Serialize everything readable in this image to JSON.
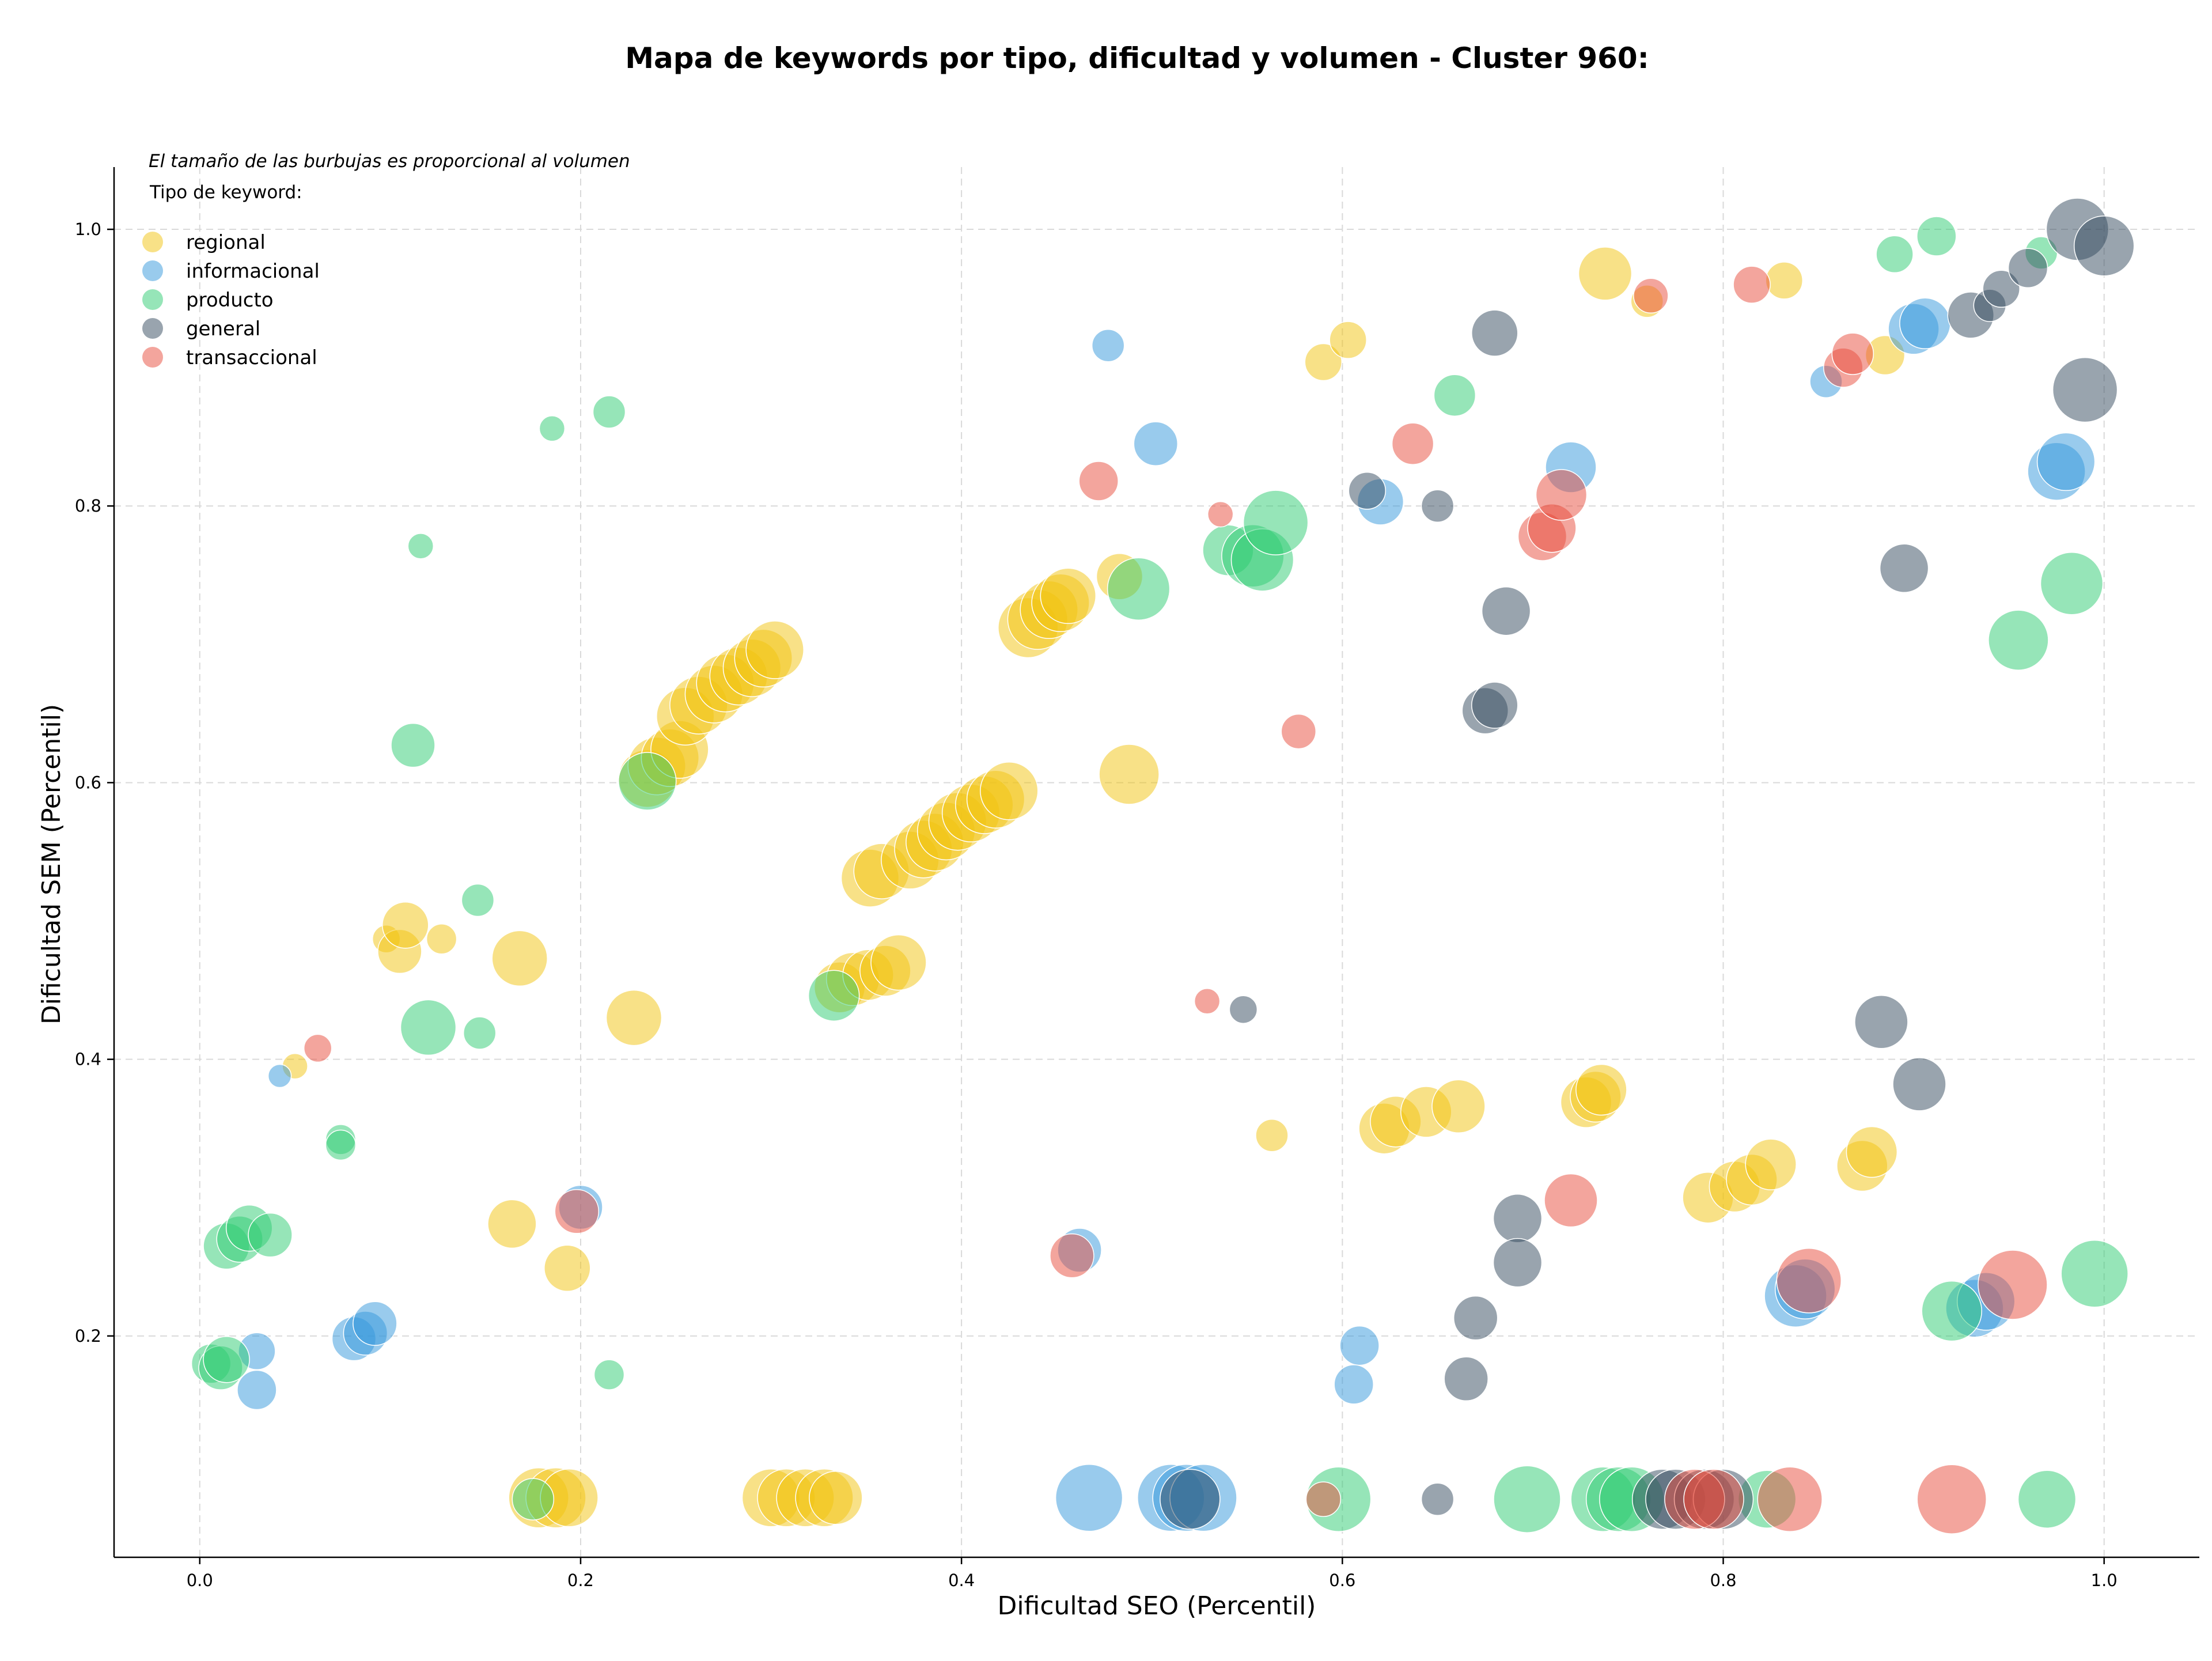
{
  "chart_data": {
    "type": "scatter",
    "title": "Mapa de keywords por tipo, dificultad y volumen - Cluster 960:",
    "xlabel": "Dificultad SEO (Percentil)",
    "ylabel": "Dificultad SEM (Percentil)",
    "xlim": [
      -0.045,
      1.05
    ],
    "ylim": [
      0.04,
      1.045
    ],
    "xticks": [
      0.0,
      0.2,
      0.4,
      0.6,
      0.8,
      1.0
    ],
    "xtick_labels": [
      "0.0",
      "0.2",
      "0.4",
      "0.6",
      "0.8",
      "1.0"
    ],
    "yticks": [
      0.2,
      0.4,
      0.6,
      0.8,
      1.0
    ],
    "ytick_labels": [
      "0.2",
      "0.4",
      "0.6",
      "0.8",
      "1.0"
    ],
    "grid": true,
    "size_note": "El tamaño de las burbujas es proporcional al volumen",
    "legend_title": "Tipo de keyword:",
    "legend_position": "top-left",
    "series": [
      {
        "name": "regional",
        "color": "#f1c40f",
        "points": [
          [
            0.05,
            0.395,
            22
          ],
          [
            0.098,
            0.487,
            24
          ],
          [
            0.105,
            0.478,
            38
          ],
          [
            0.108,
            0.497,
            40
          ],
          [
            0.127,
            0.487,
            26
          ],
          [
            0.168,
            0.473,
            48
          ],
          [
            0.164,
            0.281,
            42
          ],
          [
            0.193,
            0.249,
            40
          ],
          [
            0.228,
            0.43,
            48
          ],
          [
            0.235,
            0.603,
            50
          ],
          [
            0.24,
            0.612,
            50
          ],
          [
            0.247,
            0.618,
            50
          ],
          [
            0.252,
            0.624,
            50
          ],
          [
            0.255,
            0.648,
            50
          ],
          [
            0.262,
            0.656,
            50
          ],
          [
            0.27,
            0.664,
            50
          ],
          [
            0.276,
            0.672,
            50
          ],
          [
            0.283,
            0.677,
            50
          ],
          [
            0.29,
            0.683,
            50
          ],
          [
            0.296,
            0.69,
            50
          ],
          [
            0.302,
            0.696,
            50
          ],
          [
            0.352,
            0.531,
            50
          ],
          [
            0.358,
            0.536,
            48
          ],
          [
            0.373,
            0.544,
            50
          ],
          [
            0.38,
            0.552,
            50
          ],
          [
            0.386,
            0.557,
            50
          ],
          [
            0.392,
            0.565,
            50
          ],
          [
            0.398,
            0.572,
            50
          ],
          [
            0.405,
            0.578,
            50
          ],
          [
            0.412,
            0.584,
            50
          ],
          [
            0.418,
            0.588,
            50
          ],
          [
            0.425,
            0.594,
            50
          ],
          [
            0.336,
            0.452,
            44
          ],
          [
            0.343,
            0.458,
            46
          ],
          [
            0.351,
            0.461,
            44
          ],
          [
            0.36,
            0.464,
            44
          ],
          [
            0.367,
            0.47,
            48
          ],
          [
            0.435,
            0.712,
            52
          ],
          [
            0.44,
            0.718,
            52
          ],
          [
            0.446,
            0.725,
            50
          ],
          [
            0.452,
            0.73,
            50
          ],
          [
            0.456,
            0.735,
            48
          ],
          [
            0.483,
            0.749,
            40
          ],
          [
            0.488,
            0.606,
            52
          ],
          [
            0.59,
            0.904,
            32
          ],
          [
            0.603,
            0.92,
            32
          ],
          [
            0.563,
            0.345,
            28
          ],
          [
            0.622,
            0.35,
            44
          ],
          [
            0.628,
            0.355,
            44
          ],
          [
            0.644,
            0.362,
            44
          ],
          [
            0.661,
            0.366,
            46
          ],
          [
            0.728,
            0.369,
            44
          ],
          [
            0.733,
            0.373,
            44
          ],
          [
            0.736,
            0.378,
            44
          ],
          [
            0.792,
            0.3,
            44
          ],
          [
            0.806,
            0.308,
            44
          ],
          [
            0.815,
            0.313,
            44
          ],
          [
            0.825,
            0.324,
            44
          ],
          [
            0.873,
            0.323,
            44
          ],
          [
            0.878,
            0.333,
            44
          ],
          [
            0.738,
            0.968,
            46
          ],
          [
            0.76,
            0.948,
            28
          ],
          [
            0.832,
            0.963,
            32
          ],
          [
            0.885,
            0.909,
            34
          ],
          [
            0.178,
            0.083,
            52
          ],
          [
            0.187,
            0.083,
            52
          ],
          [
            0.194,
            0.083,
            50
          ],
          [
            0.3,
            0.083,
            50
          ],
          [
            0.308,
            0.083,
            50
          ],
          [
            0.318,
            0.083,
            50
          ],
          [
            0.328,
            0.083,
            50
          ],
          [
            0.334,
            0.083,
            46
          ]
        ]
      },
      {
        "name": "informacional",
        "color": "#3498db",
        "points": [
          [
            0.042,
            0.388,
            20
          ],
          [
            0.03,
            0.189,
            32
          ],
          [
            0.03,
            0.161,
            34
          ],
          [
            0.081,
            0.198,
            38
          ],
          [
            0.087,
            0.202,
            38
          ],
          [
            0.092,
            0.209,
            38
          ],
          [
            0.2,
            0.293,
            38
          ],
          [
            0.477,
            0.916,
            28
          ],
          [
            0.502,
            0.845,
            38
          ],
          [
            0.62,
            0.803,
            40
          ],
          [
            0.72,
            0.828,
            44
          ],
          [
            0.854,
            0.89,
            28
          ],
          [
            0.9,
            0.928,
            44
          ],
          [
            0.906,
            0.932,
            44
          ],
          [
            0.975,
            0.825,
            50
          ],
          [
            0.98,
            0.832,
            50
          ],
          [
            0.462,
            0.262,
            38
          ],
          [
            0.609,
            0.193,
            34
          ],
          [
            0.606,
            0.165,
            34
          ],
          [
            0.838,
            0.229,
            54
          ],
          [
            0.843,
            0.234,
            52
          ],
          [
            0.932,
            0.22,
            50
          ],
          [
            0.938,
            0.225,
            50
          ],
          [
            0.467,
            0.083,
            58
          ],
          [
            0.51,
            0.083,
            58
          ],
          [
            0.518,
            0.083,
            58
          ],
          [
            0.527,
            0.083,
            58
          ]
        ]
      },
      {
        "name": "producto",
        "color": "#2ecc71",
        "points": [
          [
            0.006,
            0.18,
            34
          ],
          [
            0.011,
            0.177,
            38
          ],
          [
            0.014,
            0.183,
            40
          ],
          [
            0.014,
            0.265,
            40
          ],
          [
            0.021,
            0.27,
            40
          ],
          [
            0.026,
            0.278,
            40
          ],
          [
            0.037,
            0.273,
            38
          ],
          [
            0.074,
            0.342,
            26
          ],
          [
            0.074,
            0.338,
            26
          ],
          [
            0.12,
            0.423,
            48
          ],
          [
            0.147,
            0.419,
            28
          ],
          [
            0.112,
            0.627,
            38
          ],
          [
            0.116,
            0.771,
            22
          ],
          [
            0.146,
            0.515,
            28
          ],
          [
            0.185,
            0.856,
            22
          ],
          [
            0.215,
            0.868,
            28
          ],
          [
            0.215,
            0.172,
            26
          ],
          [
            0.175,
            0.082,
            36
          ],
          [
            0.235,
            0.601,
            50
          ],
          [
            0.333,
            0.446,
            44
          ],
          [
            0.493,
            0.74,
            54
          ],
          [
            0.54,
            0.768,
            44
          ],
          [
            0.553,
            0.764,
            54
          ],
          [
            0.558,
            0.761,
            54
          ],
          [
            0.565,
            0.788,
            56
          ],
          [
            0.659,
            0.88,
            36
          ],
          [
            0.89,
            0.982,
            32
          ],
          [
            0.912,
            0.995,
            34
          ],
          [
            0.967,
            0.983,
            28
          ],
          [
            0.955,
            0.703,
            52
          ],
          [
            0.983,
            0.744,
            54
          ],
          [
            0.92,
            0.218,
            52
          ],
          [
            0.995,
            0.245,
            58
          ],
          [
            0.598,
            0.082,
            56
          ],
          [
            0.697,
            0.082,
            58
          ],
          [
            0.737,
            0.082,
            56
          ],
          [
            0.745,
            0.082,
            56
          ],
          [
            0.752,
            0.082,
            56
          ],
          [
            0.823,
            0.082,
            50
          ],
          [
            0.97,
            0.082,
            50
          ]
        ]
      },
      {
        "name": "general",
        "color": "#34495e",
        "points": [
          [
            0.548,
            0.436,
            24
          ],
          [
            0.613,
            0.811,
            32
          ],
          [
            0.65,
            0.8,
            28
          ],
          [
            0.68,
            0.925,
            40
          ],
          [
            0.686,
            0.724,
            42
          ],
          [
            0.675,
            0.652,
            40
          ],
          [
            0.68,
            0.656,
            40
          ],
          [
            0.692,
            0.285,
            42
          ],
          [
            0.692,
            0.253,
            42
          ],
          [
            0.67,
            0.213,
            38
          ],
          [
            0.665,
            0.169,
            38
          ],
          [
            0.65,
            0.082,
            28
          ],
          [
            0.883,
            0.427,
            46
          ],
          [
            0.903,
            0.382,
            46
          ],
          [
            0.895,
            0.755,
            42
          ],
          [
            0.93,
            0.938,
            40
          ],
          [
            0.94,
            0.945,
            28
          ],
          [
            0.946,
            0.957,
            32
          ],
          [
            0.96,
            0.972,
            34
          ],
          [
            0.986,
            1.0,
            54
          ],
          [
            0.99,
            0.884,
            56
          ],
          [
            1.0,
            0.988,
            52
          ],
          [
            0.52,
            0.082,
            52
          ],
          [
            0.768,
            0.082,
            52
          ],
          [
            0.775,
            0.082,
            52
          ],
          [
            0.79,
            0.082,
            52
          ],
          [
            0.8,
            0.082,
            52
          ]
        ]
      },
      {
        "name": "transaccional",
        "color": "#e74c3c",
        "points": [
          [
            0.062,
            0.408,
            24
          ],
          [
            0.198,
            0.29,
            38
          ],
          [
            0.458,
            0.258,
            38
          ],
          [
            0.472,
            0.818,
            34
          ],
          [
            0.536,
            0.794,
            22
          ],
          [
            0.529,
            0.442,
            22
          ],
          [
            0.577,
            0.637,
            30
          ],
          [
            0.637,
            0.845,
            36
          ],
          [
            0.705,
            0.778,
            42
          ],
          [
            0.71,
            0.784,
            42
          ],
          [
            0.715,
            0.808,
            44
          ],
          [
            0.72,
            0.298,
            46
          ],
          [
            0.762,
            0.952,
            30
          ],
          [
            0.815,
            0.96,
            32
          ],
          [
            0.863,
            0.9,
            34
          ],
          [
            0.868,
            0.91,
            36
          ],
          [
            0.845,
            0.24,
            56
          ],
          [
            0.952,
            0.237,
            60
          ],
          [
            0.59,
            0.082,
            30
          ],
          [
            0.785,
            0.082,
            52
          ],
          [
            0.795,
            0.082,
            52
          ],
          [
            0.835,
            0.082,
            56
          ],
          [
            0.92,
            0.082,
            60
          ]
        ]
      }
    ]
  }
}
